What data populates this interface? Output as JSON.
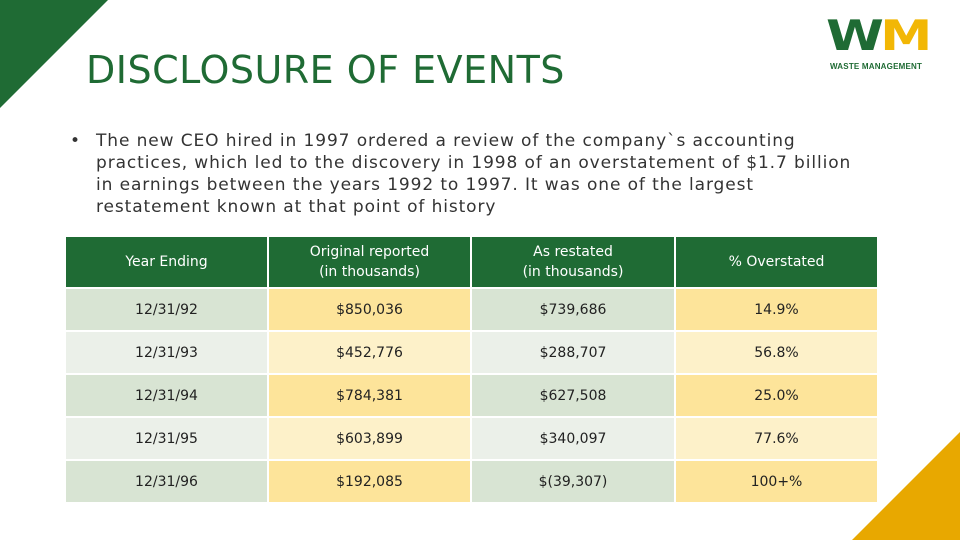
{
  "title": "DISCLOSURE OF EVENTS",
  "logo": {
    "letters_w": "W",
    "letters_m": "M",
    "caption": "WASTE MANAGEMENT",
    "colors": {
      "green": "#1f6b34",
      "yellow": "#f2b705"
    }
  },
  "bullet": {
    "marker": "•",
    "text": "The new CEO hired in 1997 ordered a review of the company`s accounting practices, which led to the discovery in 1998 of an overstatement of $1.7 billion in earnings between the years 1992 to 1997. It was one of the largest restatement known at that point of history"
  },
  "table": {
    "headers": {
      "year": "Year Ending",
      "original_line1": "Original reported",
      "original_line2": "(in thousands)",
      "restated_line1": "As restated",
      "restated_line2": "(in thousands)",
      "overstated": "% Overstated"
    },
    "rows": [
      {
        "year": "12/31/92",
        "original": "$850,036",
        "restated": "$739,686",
        "overstated": "14.9%"
      },
      {
        "year": "12/31/93",
        "original": "$452,776",
        "restated": "$288,707",
        "overstated": "56.8%"
      },
      {
        "year": "12/31/94",
        "original": "$784,381",
        "restated": "$627,508",
        "overstated": "25.0%"
      },
      {
        "year": "12/31/95",
        "original": "$603,899",
        "restated": "$340,097",
        "overstated": "77.6%"
      },
      {
        "year": "12/31/96",
        "original": "$192,085",
        "restated": "$(39,307)",
        "overstated": "100+%"
      }
    ]
  },
  "colors": {
    "brand_green": "#1f6b34",
    "accent_yellow": "#e8a800",
    "row_green": "#d8e4d3",
    "row_yellow": "#fde49a"
  }
}
